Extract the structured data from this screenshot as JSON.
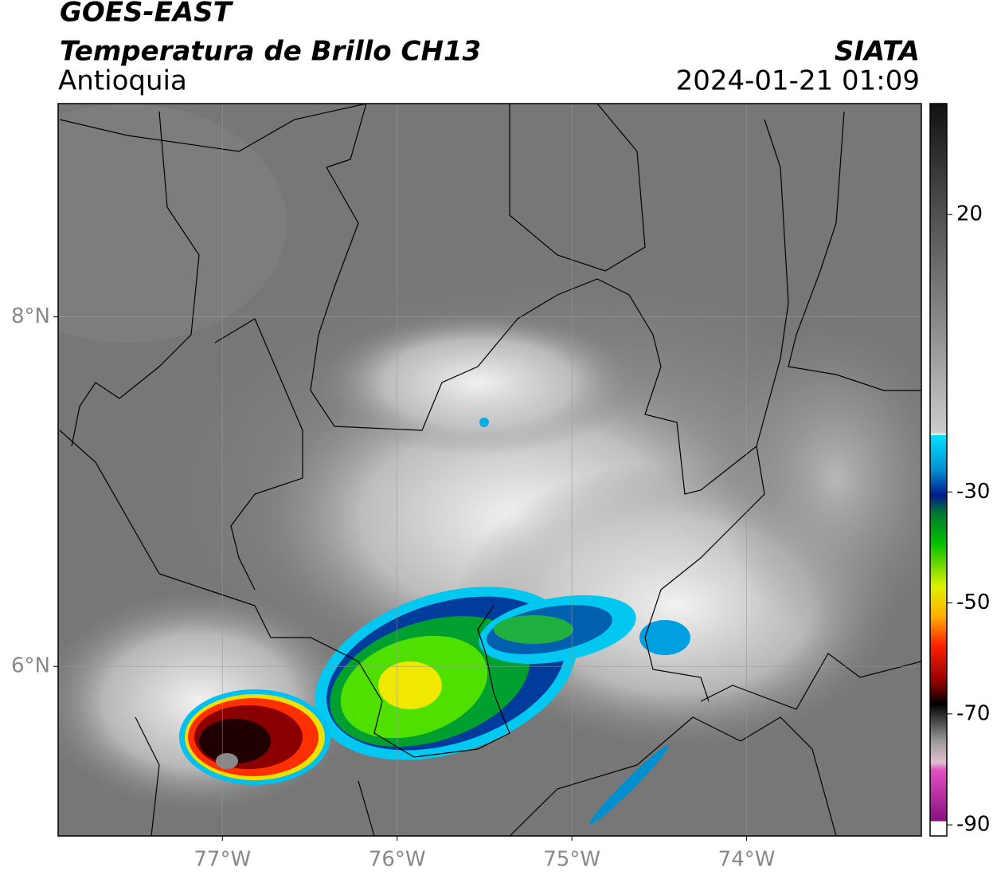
{
  "header": {
    "satellite": "GOES-EAST",
    "product": "Temperatura de Brillo CH13",
    "region": "Antioquia",
    "agency": "SIATA",
    "datetime": "2024-01-21 01:09"
  },
  "map": {
    "xlim": [
      -77.94,
      -73.0
    ],
    "ylim": [
      5.03,
      9.22
    ],
    "xticks": [
      {
        "value": -77,
        "label": "77°W"
      },
      {
        "value": -76,
        "label": "76°W"
      },
      {
        "value": -75,
        "label": "75°W"
      },
      {
        "value": -74,
        "label": "74°W"
      }
    ],
    "yticks": [
      {
        "value": 8,
        "label": "8°N"
      },
      {
        "value": 6,
        "label": "6°N"
      }
    ],
    "grid": true
  },
  "colorbar": {
    "lim": [
      -92,
      40
    ],
    "ticks": [
      20,
      -30,
      -50,
      -70,
      -90
    ]
  }
}
